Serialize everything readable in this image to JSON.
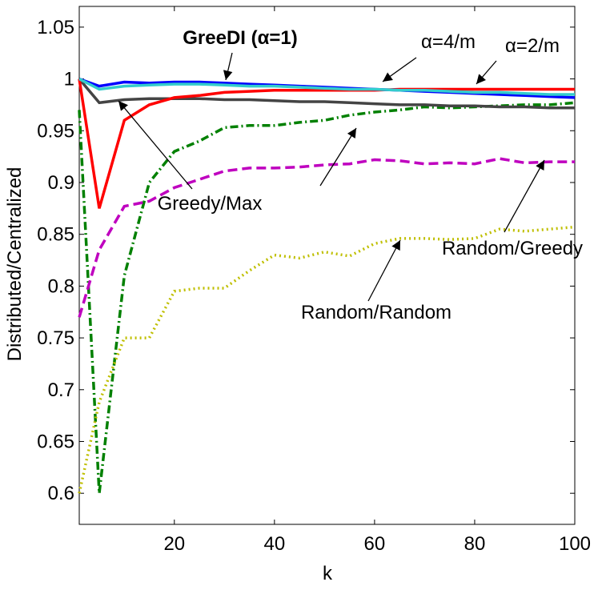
{
  "chart_data": {
    "type": "line",
    "xlabel": "k",
    "ylabel": "Distributed/Centralized",
    "x": [
      1,
      5,
      10,
      15,
      20,
      25,
      30,
      35,
      40,
      45,
      50,
      55,
      60,
      65,
      70,
      75,
      80,
      85,
      90,
      95,
      100
    ],
    "xlim": [
      1,
      100
    ],
    "xticks": [
      20,
      40,
      60,
      80,
      100
    ],
    "ylim": [
      0.57,
      1.07
    ],
    "yticks": [
      0.6,
      0.65,
      0.7,
      0.75,
      0.8,
      0.85,
      0.9,
      0.95,
      1,
      1.05
    ],
    "series": [
      {
        "color": "#008000",
        "style": "dashdot",
        "values": [
          0.97,
          0.6,
          0.81,
          0.9,
          0.93,
          0.94,
          0.953,
          0.955,
          0.955,
          0.958,
          0.96,
          0.965,
          0.968,
          0.97,
          0.973,
          0.972,
          0.973,
          0.974,
          0.975,
          0.975,
          0.977
        ]
      },
      {
        "name": "Random/Random",
        "color": "#bfbf00",
        "style": "dotted",
        "values": [
          0.6,
          0.688,
          0.75,
          0.75,
          0.795,
          0.798,
          0.798,
          0.815,
          0.83,
          0.827,
          0.833,
          0.829,
          0.841,
          0.846,
          0.846,
          0.845,
          0.846,
          0.855,
          0.853,
          0.855,
          0.857
        ]
      },
      {
        "name": "Random/Greedy",
        "color": "#bf00bf",
        "style": "dashed",
        "values": [
          0.77,
          0.835,
          0.877,
          0.882,
          0.895,
          0.903,
          0.911,
          0.914,
          0.914,
          0.915,
          0.917,
          0.918,
          0.922,
          0.921,
          0.918,
          0.919,
          0.918,
          0.923,
          0.919,
          0.92,
          0.92
        ]
      },
      {
        "name": "Greedy/Max",
        "color": "#444444",
        "style": "solid",
        "values": [
          1,
          0.977,
          0.98,
          0.981,
          0.981,
          0.981,
          0.98,
          0.98,
          0.979,
          0.978,
          0.978,
          0.977,
          0.976,
          0.975,
          0.975,
          0.974,
          0.974,
          0.973,
          0.973,
          0.972,
          0.972
        ]
      },
      {
        "name": "α=2/m",
        "color": "#ff0000",
        "style": "solid",
        "values": [
          1,
          0.875,
          0.96,
          0.975,
          0.982,
          0.984,
          0.987,
          0.988,
          0.989,
          0.989,
          0.989,
          0.989,
          0.989,
          0.99,
          0.99,
          0.99,
          0.99,
          0.99,
          0.99,
          0.99,
          0.99
        ]
      },
      {
        "name": "GreeDI (α=1)",
        "color": "#0000ff",
        "style": "solid",
        "values": [
          1,
          0.993,
          0.997,
          0.996,
          0.997,
          0.997,
          0.996,
          0.995,
          0.994,
          0.993,
          0.992,
          0.991,
          0.99,
          0.989,
          0.988,
          0.987,
          0.986,
          0.985,
          0.984,
          0.983,
          0.982
        ]
      },
      {
        "name": "α=4/m",
        "color": "#33cccc",
        "style": "solid",
        "values": [
          1,
          0.99,
          0.993,
          0.994,
          0.995,
          0.995,
          0.994,
          0.993,
          0.993,
          0.992,
          0.991,
          0.99,
          0.99,
          0.989,
          0.989,
          0.988,
          0.987,
          0.987,
          0.986,
          0.985,
          0.985
        ]
      }
    ]
  }
}
